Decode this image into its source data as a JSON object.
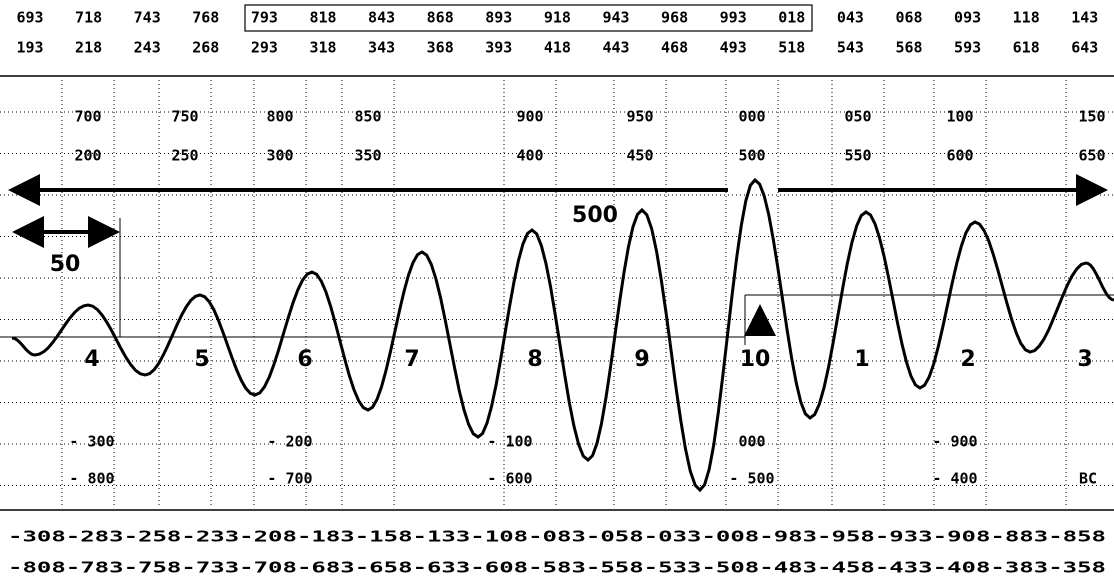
{
  "top_rows": [
    [
      "693",
      "718",
      "743",
      "768",
      "793",
      "818",
      "843",
      "868",
      "893",
      "918",
      "943",
      "968",
      "993",
      "018",
      "043",
      "068",
      "093",
      "118",
      "143"
    ],
    [
      "193",
      "218",
      "243",
      "268",
      "293",
      "318",
      "343",
      "368",
      "393",
      "418",
      "443",
      "468",
      "493",
      "518",
      "543",
      "568",
      "593",
      "618",
      "643"
    ]
  ],
  "scale_rows": [
    [
      "700",
      "750",
      "800",
      "850",
      "900",
      "950",
      "000",
      "050",
      "100",
      "150"
    ],
    [
      "200",
      "250",
      "300",
      "350",
      "400",
      "450",
      "500",
      "550",
      "600",
      "650"
    ]
  ],
  "cycle_labels": [
    "4",
    "5",
    "6",
    "7",
    "8",
    "9",
    "10",
    "1",
    "2",
    "3"
  ],
  "span_labels": {
    "long": "500",
    "short": "50"
  },
  "lower_rows": [
    [
      "- 300",
      "- 200",
      "- 100",
      "000",
      "- 900"
    ],
    [
      "- 800",
      "- 700",
      "- 600",
      "- 500",
      "- 400",
      "BC"
    ]
  ],
  "bottom_rows": [
    "-308-283-258-233-208-183-158-133-108-083-058-033-008-983-958-933-908-883-858",
    "-808-783-758-733-708-683-658-633-608-583-558-533-508-483-458-433-408-383-358"
  ]
}
